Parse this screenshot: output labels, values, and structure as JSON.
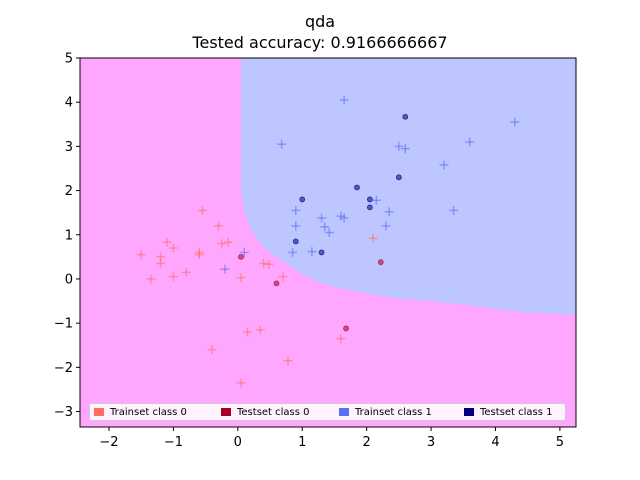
{
  "title": "qda",
  "subtitle": "Tested accuracy: 0.9166666667",
  "chart_data": {
    "type": "scatter",
    "title": "qda",
    "subtitle": "Tested accuracy: 0.9166666667",
    "xlim": [
      -2.45,
      5.25
    ],
    "ylim": [
      -3.35,
      5.0
    ],
    "x_ticks": [
      -2,
      -1,
      0,
      1,
      2,
      3,
      4,
      5
    ],
    "y_ticks": [
      -3,
      -2,
      -1,
      0,
      1,
      2,
      3,
      4,
      5
    ],
    "grid": false,
    "legend_placement": "lower-center",
    "colors": {
      "region_class_0": "#ffa6ff",
      "region_class_1": "#bdc6ff",
      "trainset_class_0": "#ff6e5e",
      "testset_class_0": "#a50026",
      "trainset_class_1": "#5b6ef6",
      "testset_class_1": "#00007e"
    },
    "decision_boundary": [
      {
        "x": -2.45,
        "y": 5.0
      },
      {
        "x": 0.05,
        "y": 5.0
      },
      {
        "x": 0.05,
        "y": 2.0
      },
      {
        "x": 0.1,
        "y": 1.5
      },
      {
        "x": 0.25,
        "y": 1.0
      },
      {
        "x": 0.45,
        "y": 0.65
      },
      {
        "x": 0.75,
        "y": 0.35
      },
      {
        "x": 1.0,
        "y": 0.1
      },
      {
        "x": 1.3,
        "y": -0.1
      },
      {
        "x": 1.7,
        "y": -0.25
      },
      {
        "x": 2.1,
        "y": -0.35
      },
      {
        "x": 2.5,
        "y": -0.45
      },
      {
        "x": 3.0,
        "y": -0.5
      },
      {
        "x": 3.5,
        "y": -0.58
      },
      {
        "x": 4.0,
        "y": -0.68
      },
      {
        "x": 4.5,
        "y": -0.76
      },
      {
        "x": 5.25,
        "y": -0.82
      }
    ],
    "series": [
      {
        "name": "Trainset class 0",
        "marker": "plus",
        "color": "#ff6e5e",
        "points": [
          {
            "x": -1.5,
            "y": 0.55
          },
          {
            "x": -1.35,
            "y": 0.0
          },
          {
            "x": -1.2,
            "y": 0.5
          },
          {
            "x": -1.2,
            "y": 0.35
          },
          {
            "x": -1.1,
            "y": 0.83
          },
          {
            "x": -1.0,
            "y": 0.7
          },
          {
            "x": -1.0,
            "y": 0.05
          },
          {
            "x": -0.8,
            "y": 0.15
          },
          {
            "x": -0.6,
            "y": 0.55
          },
          {
            "x": -0.6,
            "y": 0.6
          },
          {
            "x": -0.55,
            "y": 1.55
          },
          {
            "x": -0.3,
            "y": 1.2
          },
          {
            "x": -0.25,
            "y": 0.8
          },
          {
            "x": -0.15,
            "y": 0.83
          },
          {
            "x": -0.4,
            "y": -1.6
          },
          {
            "x": 0.05,
            "y": 0.03
          },
          {
            "x": 0.15,
            "y": -1.2
          },
          {
            "x": 0.35,
            "y": -1.15
          },
          {
            "x": 0.4,
            "y": 0.35
          },
          {
            "x": 0.48,
            "y": 0.33
          },
          {
            "x": 0.7,
            "y": 0.05
          },
          {
            "x": 0.78,
            "y": -1.85
          },
          {
            "x": 0.05,
            "y": -2.35
          },
          {
            "x": 1.6,
            "y": -1.35
          },
          {
            "x": 2.1,
            "y": 0.92
          }
        ]
      },
      {
        "name": "Testset class 0",
        "marker": "dot",
        "color": "#a50026",
        "points": [
          {
            "x": 0.05,
            "y": 0.5
          },
          {
            "x": 0.6,
            "y": -0.1
          },
          {
            "x": 1.68,
            "y": -1.12
          },
          {
            "x": 2.22,
            "y": 0.38
          }
        ]
      },
      {
        "name": "Trainset class 1",
        "marker": "plus",
        "color": "#5b6ef6",
        "points": [
          {
            "x": -0.2,
            "y": 0.22
          },
          {
            "x": 0.1,
            "y": 0.6
          },
          {
            "x": 0.68,
            "y": 3.05
          },
          {
            "x": 0.85,
            "y": 0.6
          },
          {
            "x": 0.9,
            "y": 1.55
          },
          {
            "x": 0.9,
            "y": 1.2
          },
          {
            "x": 1.15,
            "y": 0.62
          },
          {
            "x": 1.3,
            "y": 1.38
          },
          {
            "x": 1.35,
            "y": 1.18
          },
          {
            "x": 1.42,
            "y": 1.05
          },
          {
            "x": 1.6,
            "y": 1.42
          },
          {
            "x": 1.65,
            "y": 1.38
          },
          {
            "x": 1.65,
            "y": 4.05
          },
          {
            "x": 2.15,
            "y": 1.78
          },
          {
            "x": 2.3,
            "y": 1.2
          },
          {
            "x": 2.35,
            "y": 1.52
          },
          {
            "x": 2.5,
            "y": 3.0
          },
          {
            "x": 2.6,
            "y": 2.95
          },
          {
            "x": 3.2,
            "y": 2.58
          },
          {
            "x": 3.35,
            "y": 1.55
          },
          {
            "x": 3.6,
            "y": 3.1
          },
          {
            "x": 4.3,
            "y": 3.55
          }
        ]
      },
      {
        "name": "Testset class 1",
        "marker": "dot",
        "color": "#00007e",
        "points": [
          {
            "x": 0.9,
            "y": 0.85
          },
          {
            "x": 1.0,
            "y": 1.8
          },
          {
            "x": 1.3,
            "y": 0.6
          },
          {
            "x": 1.85,
            "y": 2.07
          },
          {
            "x": 2.05,
            "y": 1.8
          },
          {
            "x": 2.05,
            "y": 1.62
          },
          {
            "x": 2.5,
            "y": 2.3
          },
          {
            "x": 2.6,
            "y": 3.67
          }
        ]
      }
    ]
  },
  "legend": {
    "items": [
      {
        "label": "Trainset class 0",
        "color": "#ff6e5e"
      },
      {
        "label": "Testset class 0",
        "color": "#a50026"
      },
      {
        "label": "Trainset class 1",
        "color": "#5b6ef6"
      },
      {
        "label": "Testset class 1",
        "color": "#00007e"
      }
    ]
  }
}
